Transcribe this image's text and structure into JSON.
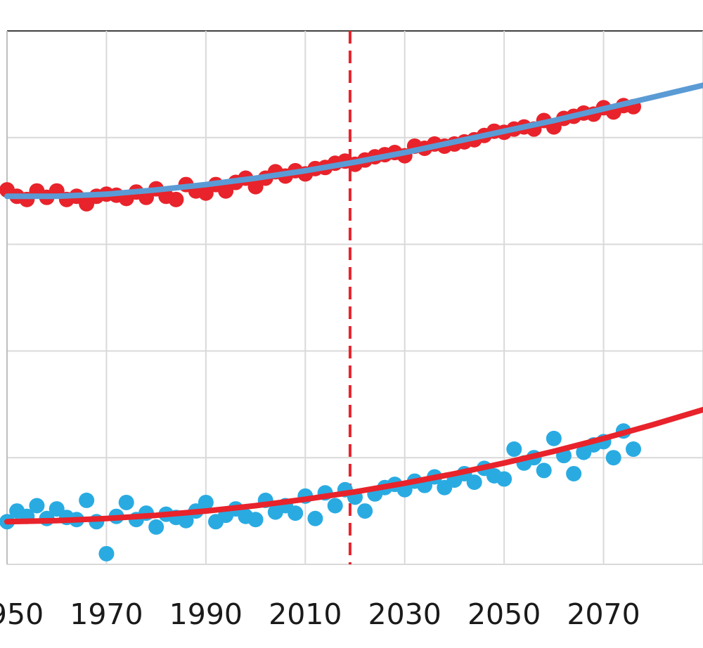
{
  "chart_data": {
    "type": "scatter",
    "title": "",
    "xlabel": "",
    "ylabel": "",
    "x_ticks": [
      "1950",
      "1970",
      "1990",
      "2010",
      "2030",
      "2050",
      "2070"
    ],
    "x_tick_values": [
      1950,
      1970,
      1990,
      2010,
      2030,
      2050,
      2070
    ],
    "xlim": [
      1950,
      2090
    ],
    "ylim": [
      0,
      5
    ],
    "grid": true,
    "legend": "none",
    "vertical_marker": {
      "x": 2019,
      "style": "dashed",
      "color": "#e8232b"
    },
    "series": [
      {
        "kind": "scatter",
        "color": "#e8232b",
        "x": [
          1950,
          1952,
          1954,
          1956,
          1958,
          1960,
          1962,
          1964,
          1966,
          1968,
          1970,
          1972,
          1974,
          1976,
          1978,
          1980,
          1982,
          1984,
          1986,
          1988,
          1990,
          1992,
          1994,
          1996,
          1998,
          2000,
          2002,
          2004,
          2006,
          2008,
          2010,
          2012,
          2014,
          2016,
          2018,
          2020,
          2022,
          2024,
          2026,
          2028,
          2030,
          2032,
          2034,
          2036,
          2038,
          2040,
          2042,
          2044,
          2046,
          2048,
          2050,
          2052,
          2054,
          2056,
          2058,
          2060,
          2062,
          2064,
          2066,
          2068,
          2070,
          2072,
          2074,
          2076
        ],
        "y": [
          3.51,
          3.45,
          3.42,
          3.5,
          3.44,
          3.5,
          3.42,
          3.45,
          3.38,
          3.45,
          3.47,
          3.46,
          3.43,
          3.49,
          3.44,
          3.52,
          3.45,
          3.42,
          3.56,
          3.5,
          3.48,
          3.56,
          3.5,
          3.58,
          3.62,
          3.54,
          3.62,
          3.68,
          3.64,
          3.69,
          3.66,
          3.71,
          3.72,
          3.76,
          3.78,
          3.75,
          3.79,
          3.82,
          3.84,
          3.86,
          3.83,
          3.92,
          3.9,
          3.94,
          3.92,
          3.94,
          3.96,
          3.98,
          4.02,
          4.06,
          4.05,
          4.08,
          4.1,
          4.08,
          4.16,
          4.1,
          4.18,
          4.2,
          4.23,
          4.22,
          4.28,
          4.24,
          4.3,
          4.29
        ]
      },
      {
        "kind": "line",
        "color": "#5b9bd5",
        "x": [
          1950,
          1960,
          1970,
          1980,
          1990,
          2000,
          2010,
          2020,
          2030,
          2040,
          2050,
          2060,
          2070,
          2080,
          2090
        ],
        "y": [
          3.45,
          3.45,
          3.47,
          3.51,
          3.56,
          3.62,
          3.69,
          3.77,
          3.86,
          3.96,
          4.06,
          4.16,
          4.27,
          4.38,
          4.49
        ]
      },
      {
        "kind": "scatter",
        "color": "#29abe2",
        "x": [
          1950,
          1952,
          1954,
          1956,
          1958,
          1960,
          1962,
          1964,
          1966,
          1968,
          1970,
          1972,
          1974,
          1976,
          1978,
          1980,
          1982,
          1984,
          1986,
          1988,
          1990,
          1992,
          1994,
          1996,
          1998,
          2000,
          2002,
          2004,
          2006,
          2008,
          2010,
          2012,
          2014,
          2016,
          2018,
          2020,
          2022,
          2024,
          2026,
          2028,
          2030,
          2032,
          2034,
          2036,
          2038,
          2040,
          2042,
          2044,
          2046,
          2048,
          2050,
          2052,
          2054,
          2056,
          2058,
          2060,
          2062,
          2064,
          2066,
          2068,
          2070,
          2072,
          2074,
          2076
        ],
        "y": [
          0.4,
          0.5,
          0.45,
          0.55,
          0.43,
          0.52,
          0.44,
          0.42,
          0.6,
          0.4,
          0.1,
          0.45,
          0.58,
          0.42,
          0.48,
          0.35,
          0.47,
          0.44,
          0.41,
          0.5,
          0.58,
          0.4,
          0.46,
          0.52,
          0.45,
          0.42,
          0.6,
          0.49,
          0.55,
          0.48,
          0.64,
          0.43,
          0.67,
          0.55,
          0.7,
          0.63,
          0.5,
          0.66,
          0.72,
          0.75,
          0.7,
          0.78,
          0.74,
          0.82,
          0.72,
          0.79,
          0.85,
          0.77,
          0.9,
          0.83,
          0.8,
          1.08,
          0.95,
          1.0,
          0.88,
          1.18,
          1.02,
          0.85,
          1.05,
          1.12,
          1.15,
          1.0,
          1.25,
          1.08
        ]
      },
      {
        "kind": "line",
        "color": "#e8232b",
        "x": [
          1950,
          1960,
          1970,
          1980,
          1990,
          2000,
          2010,
          2020,
          2030,
          2040,
          2050,
          2060,
          2070,
          2080,
          2090
        ],
        "y": [
          0.4,
          0.41,
          0.43,
          0.46,
          0.5,
          0.55,
          0.61,
          0.68,
          0.76,
          0.85,
          0.95,
          1.06,
          1.18,
          1.31,
          1.45
        ]
      }
    ]
  }
}
